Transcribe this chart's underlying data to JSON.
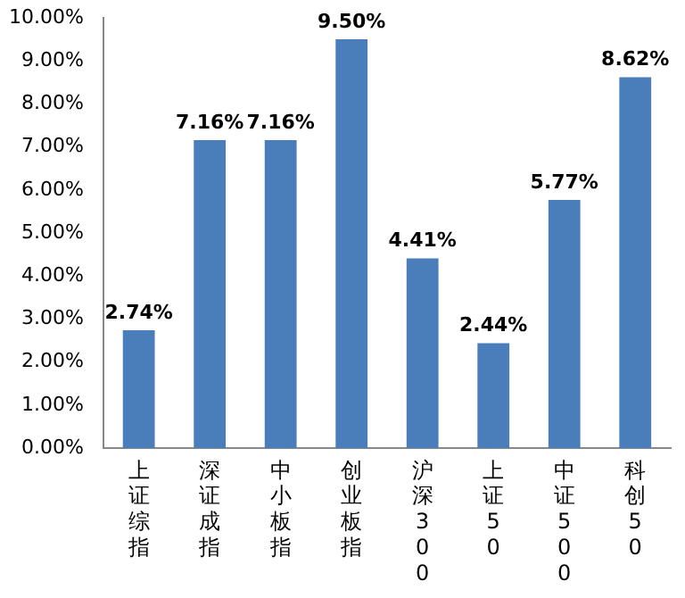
{
  "chart_data": {
    "type": "bar",
    "categories": [
      "上证综指",
      "深证成指",
      "中小板指",
      "创业板指",
      "沪深300",
      "上证50",
      "中证500",
      "科创50"
    ],
    "values": [
      2.74,
      7.16,
      7.16,
      9.5,
      4.41,
      2.44,
      5.77,
      8.62
    ],
    "value_labels": [
      "2.74%",
      "7.16%",
      "7.16%",
      "9.50%",
      "4.41%",
      "2.44%",
      "5.77%",
      "8.62%"
    ],
    "color": "#4a7ebb",
    "ylim": [
      0,
      10
    ],
    "yticks": [
      {
        "value": 0,
        "label": "0.00%"
      },
      {
        "value": 1,
        "label": "1.00%"
      },
      {
        "value": 2,
        "label": "2.00%"
      },
      {
        "value": 3,
        "label": "3.00%"
      },
      {
        "value": 4,
        "label": "4.00%"
      },
      {
        "value": 5,
        "label": "5.00%"
      },
      {
        "value": 6,
        "label": "6.00%"
      },
      {
        "value": 7,
        "label": "7.00%"
      },
      {
        "value": 8,
        "label": "8.00%"
      },
      {
        "value": 9,
        "label": "9.00%"
      },
      {
        "value": 10,
        "label": "10.00%"
      }
    ],
    "grid": false,
    "legend": false
  }
}
